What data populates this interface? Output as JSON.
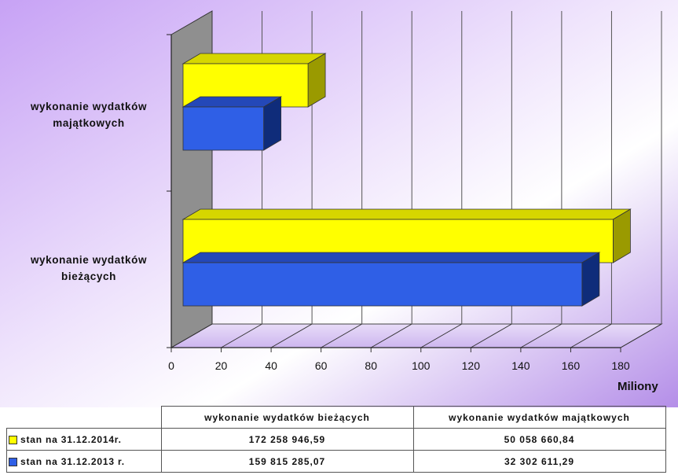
{
  "chart_data": {
    "type": "bar",
    "orientation": "horizontal",
    "style": "3d",
    "categories": [
      "wykonanie wydatków bieżących",
      "wykonanie wydatków majątkowych"
    ],
    "category_labels": [
      [
        "wykonanie wydatków",
        "bieżących"
      ],
      [
        "wykonanie wydatków",
        "majątkowych"
      ]
    ],
    "series": [
      {
        "name": "stan na 31.12.2014r.",
        "color": "#ffff00",
        "values": [
          172.258946,
          50.058661
        ]
      },
      {
        "name": "stan na 31.12.2013 r.",
        "color": "#2f5fe6",
        "values": [
          159.815285,
          32.302611
        ]
      }
    ],
    "x_ticks": [
      "0",
      "20",
      "40",
      "60",
      "80",
      "100",
      "120",
      "140",
      "160",
      "180"
    ],
    "xlim": [
      0,
      180
    ],
    "xlabel": "Miliony",
    "grid": true,
    "data_table": {
      "headers": [
        "wykonanie wydatków bieżących",
        "wykonanie wydatków majątkowych"
      ],
      "rows": [
        {
          "label": "stan na 31.12.2014r.",
          "color": "#ffff00",
          "cells": [
            "172 258 946,59",
            "50 058 660,84"
          ]
        },
        {
          "label": "stan na 31.12.2013 r.",
          "color": "#2f5fe6",
          "cells": [
            "159 815 285,07",
            "32 302 611,29"
          ]
        }
      ]
    }
  }
}
